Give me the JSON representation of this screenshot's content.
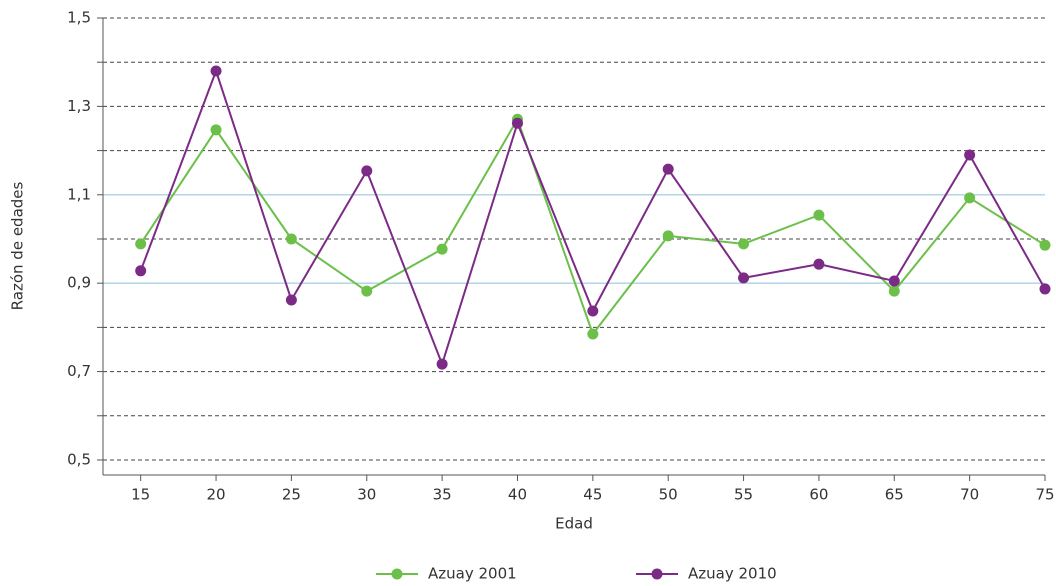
{
  "chart_data": {
    "type": "line",
    "x_label": "Edad",
    "y_label": "Razón de edades",
    "x": [
      15,
      20,
      25,
      30,
      35,
      40,
      45,
      50,
      55,
      60,
      65,
      70,
      75
    ],
    "xlim": [
      12.5,
      75
    ],
    "xticks": [
      15,
      20,
      25,
      30,
      35,
      40,
      45,
      50,
      55,
      60,
      65,
      70,
      75
    ],
    "ylim": [
      0.466,
      1.5
    ],
    "yticks": [
      {
        "value": 0.5,
        "label": "0,5"
      },
      {
        "value": 0.7,
        "label": "0,7"
      },
      {
        "value": 0.9,
        "label": "0,9"
      },
      {
        "value": 1.1,
        "label": "1,1"
      },
      {
        "value": 1.3,
        "label": "1,3"
      },
      {
        "value": 1.5,
        "label": "1,5"
      }
    ],
    "minor_yticks": [
      0.6,
      0.8,
      1.0,
      1.2,
      1.4
    ],
    "grid": true,
    "reference_lines": {
      "values": [
        0.9,
        1.1
      ],
      "color": "#a9d3e6"
    },
    "legend": "bottom",
    "series": [
      {
        "name": "Azuay 2001",
        "color": "#6cc04a",
        "values": [
          0.989,
          1.247,
          1.0,
          0.882,
          0.977,
          1.271,
          0.785,
          1.007,
          0.989,
          1.054,
          0.882,
          1.093,
          0.986
        ]
      },
      {
        "name": "Azuay 2010",
        "color": "#7b2a86",
        "values": [
          0.928,
          1.38,
          0.862,
          1.154,
          0.717,
          1.262,
          0.837,
          1.158,
          0.912,
          0.943,
          0.905,
          1.19,
          0.887
        ]
      }
    ]
  }
}
